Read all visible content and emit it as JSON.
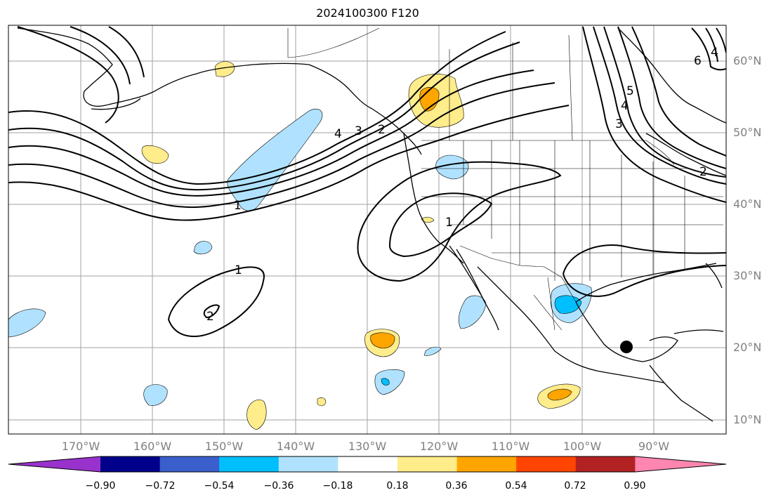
{
  "title": "2024100300 F120",
  "lat_labels": [
    "60°N",
    "50°N",
    "40°N",
    "30°N",
    "20°N",
    "10°N"
  ],
  "lon_labels": [
    "170°W",
    "160°W",
    "150°W",
    "140°W",
    "130°W",
    "120°W",
    "110°W",
    "100°W",
    "90°W"
  ],
  "colorbar": {
    "ticks": [
      "−0.90",
      "−0.72",
      "−0.54",
      "−0.36",
      "−0.18",
      "0.18",
      "0.36",
      "0.54",
      "0.72",
      "0.90"
    ],
    "colors": [
      "#9932cc",
      "#00008b",
      "#3a5fcd",
      "#00bfff",
      "#b0e2ff",
      "#ffffff",
      "#ffec8b",
      "#ffa500",
      "#ff4500",
      "#b22222",
      "#ff86b0"
    ]
  },
  "contour_labels": [
    "1",
    "1",
    "2",
    "1",
    "3",
    "4",
    "6",
    "5",
    "4",
    "3",
    "4",
    "2",
    "2"
  ],
  "colors": {
    "contour": "#000000",
    "grid": "#a0a0a0",
    "coastline": "#000000"
  }
}
